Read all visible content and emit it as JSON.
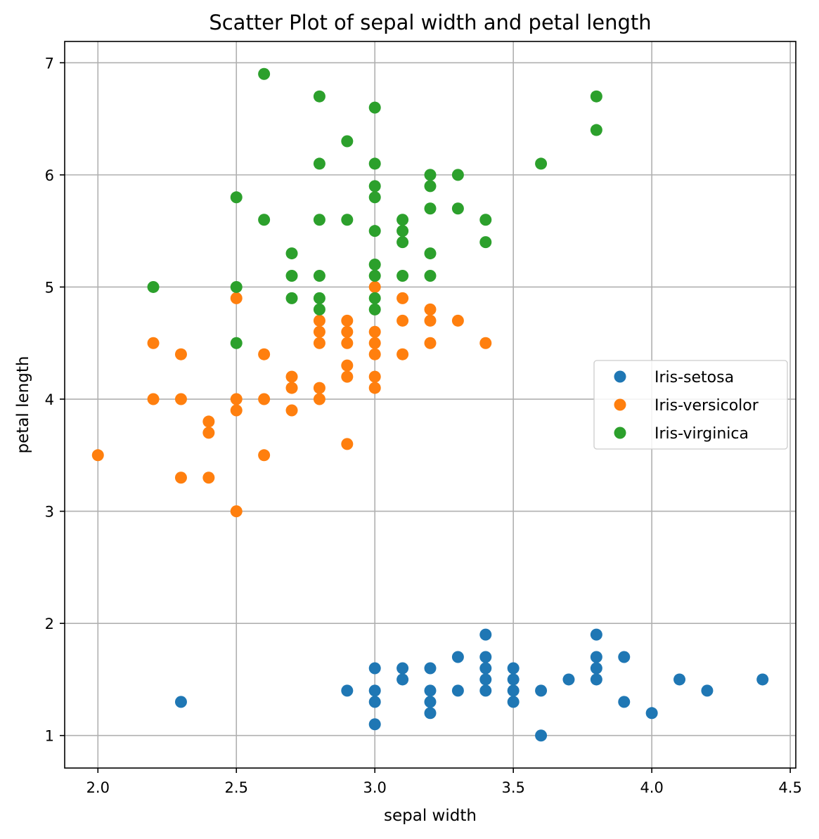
{
  "chart_data": {
    "type": "scatter",
    "title": "Scatter Plot of sepal width and petal length",
    "xlabel": "sepal width",
    "ylabel": "petal length",
    "xlim": [
      1.88,
      4.52
    ],
    "ylim": [
      0.71,
      7.19
    ],
    "xticks": [
      2.0,
      2.5,
      3.0,
      3.5,
      4.0,
      4.5
    ],
    "xtick_labels": [
      "2.0",
      "2.5",
      "3.0",
      "3.5",
      "4.0",
      "4.5"
    ],
    "yticks": [
      1,
      2,
      3,
      4,
      5,
      6,
      7
    ],
    "ytick_labels": [
      "1",
      "2",
      "3",
      "4",
      "5",
      "6",
      "7"
    ],
    "grid": true,
    "legend_position": "center-right",
    "series": [
      {
        "name": "Iris-setosa",
        "color": "#1f77b4",
        "points": [
          [
            2.3,
            1.3
          ],
          [
            2.9,
            1.4
          ],
          [
            3.0,
            1.6
          ],
          [
            3.0,
            1.4
          ],
          [
            3.0,
            1.3
          ],
          [
            3.0,
            1.1
          ],
          [
            3.1,
            1.6
          ],
          [
            3.1,
            1.5
          ],
          [
            3.2,
            1.6
          ],
          [
            3.2,
            1.4
          ],
          [
            3.2,
            1.3
          ],
          [
            3.2,
            1.2
          ],
          [
            3.3,
            1.7
          ],
          [
            3.3,
            1.4
          ],
          [
            3.4,
            1.9
          ],
          [
            3.4,
            1.7
          ],
          [
            3.4,
            1.6
          ],
          [
            3.4,
            1.5
          ],
          [
            3.4,
            1.4
          ],
          [
            3.5,
            1.6
          ],
          [
            3.5,
            1.5
          ],
          [
            3.5,
            1.4
          ],
          [
            3.5,
            1.3
          ],
          [
            3.6,
            1.4
          ],
          [
            3.6,
            1.0
          ],
          [
            3.7,
            1.5
          ],
          [
            3.8,
            1.9
          ],
          [
            3.8,
            1.7
          ],
          [
            3.8,
            1.6
          ],
          [
            3.8,
            1.5
          ],
          [
            3.9,
            1.7
          ],
          [
            3.9,
            1.3
          ],
          [
            4.0,
            1.2
          ],
          [
            4.1,
            1.5
          ],
          [
            4.2,
            1.4
          ],
          [
            4.4,
            1.5
          ]
        ]
      },
      {
        "name": "Iris-versicolor",
        "color": "#ff7f0e",
        "points": [
          [
            2.0,
            3.5
          ],
          [
            2.2,
            4.5
          ],
          [
            2.2,
            4.0
          ],
          [
            2.3,
            4.4
          ],
          [
            2.3,
            4.0
          ],
          [
            2.3,
            3.3
          ],
          [
            2.4,
            3.8
          ],
          [
            2.4,
            3.7
          ],
          [
            2.4,
            3.3
          ],
          [
            2.5,
            4.9
          ],
          [
            2.5,
            4.0
          ],
          [
            2.5,
            3.9
          ],
          [
            2.5,
            3.0
          ],
          [
            2.6,
            4.4
          ],
          [
            2.6,
            4.0
          ],
          [
            2.6,
            3.5
          ],
          [
            2.7,
            4.2
          ],
          [
            2.7,
            4.1
          ],
          [
            2.7,
            3.9
          ],
          [
            2.8,
            4.7
          ],
          [
            2.8,
            4.6
          ],
          [
            2.8,
            4.5
          ],
          [
            2.8,
            4.1
          ],
          [
            2.8,
            4.0
          ],
          [
            2.9,
            4.7
          ],
          [
            2.9,
            4.6
          ],
          [
            2.9,
            4.5
          ],
          [
            2.9,
            4.3
          ],
          [
            2.9,
            4.2
          ],
          [
            2.9,
            3.6
          ],
          [
            3.0,
            5.0
          ],
          [
            3.0,
            4.6
          ],
          [
            3.0,
            4.5
          ],
          [
            3.0,
            4.4
          ],
          [
            3.0,
            4.2
          ],
          [
            3.0,
            4.1
          ],
          [
            3.1,
            4.9
          ],
          [
            3.1,
            4.7
          ],
          [
            3.1,
            4.4
          ],
          [
            3.2,
            4.8
          ],
          [
            3.2,
            4.7
          ],
          [
            3.2,
            4.5
          ],
          [
            3.3,
            4.7
          ],
          [
            3.4,
            4.5
          ]
        ]
      },
      {
        "name": "Iris-virginica",
        "color": "#2ca02c",
        "points": [
          [
            2.2,
            5.0
          ],
          [
            2.5,
            5.8
          ],
          [
            2.5,
            5.0
          ],
          [
            2.5,
            4.5
          ],
          [
            2.6,
            6.9
          ],
          [
            2.6,
            5.6
          ],
          [
            2.7,
            5.3
          ],
          [
            2.7,
            5.1
          ],
          [
            2.7,
            4.9
          ],
          [
            2.8,
            6.7
          ],
          [
            2.8,
            6.1
          ],
          [
            2.8,
            5.6
          ],
          [
            2.8,
            5.1
          ],
          [
            2.8,
            4.9
          ],
          [
            2.8,
            4.8
          ],
          [
            2.9,
            6.3
          ],
          [
            2.9,
            5.6
          ],
          [
            3.0,
            6.6
          ],
          [
            3.0,
            6.1
          ],
          [
            3.0,
            5.9
          ],
          [
            3.0,
            5.8
          ],
          [
            3.0,
            5.5
          ],
          [
            3.0,
            5.2
          ],
          [
            3.0,
            5.1
          ],
          [
            3.0,
            4.9
          ],
          [
            3.0,
            4.8
          ],
          [
            3.1,
            5.6
          ],
          [
            3.1,
            5.5
          ],
          [
            3.1,
            5.4
          ],
          [
            3.1,
            5.1
          ],
          [
            3.2,
            6.0
          ],
          [
            3.2,
            5.9
          ],
          [
            3.2,
            5.7
          ],
          [
            3.2,
            5.3
          ],
          [
            3.2,
            5.1
          ],
          [
            3.3,
            6.0
          ],
          [
            3.3,
            5.7
          ],
          [
            3.4,
            5.6
          ],
          [
            3.4,
            5.4
          ],
          [
            3.6,
            6.1
          ],
          [
            3.8,
            6.7
          ],
          [
            3.8,
            6.4
          ]
        ]
      }
    ]
  }
}
